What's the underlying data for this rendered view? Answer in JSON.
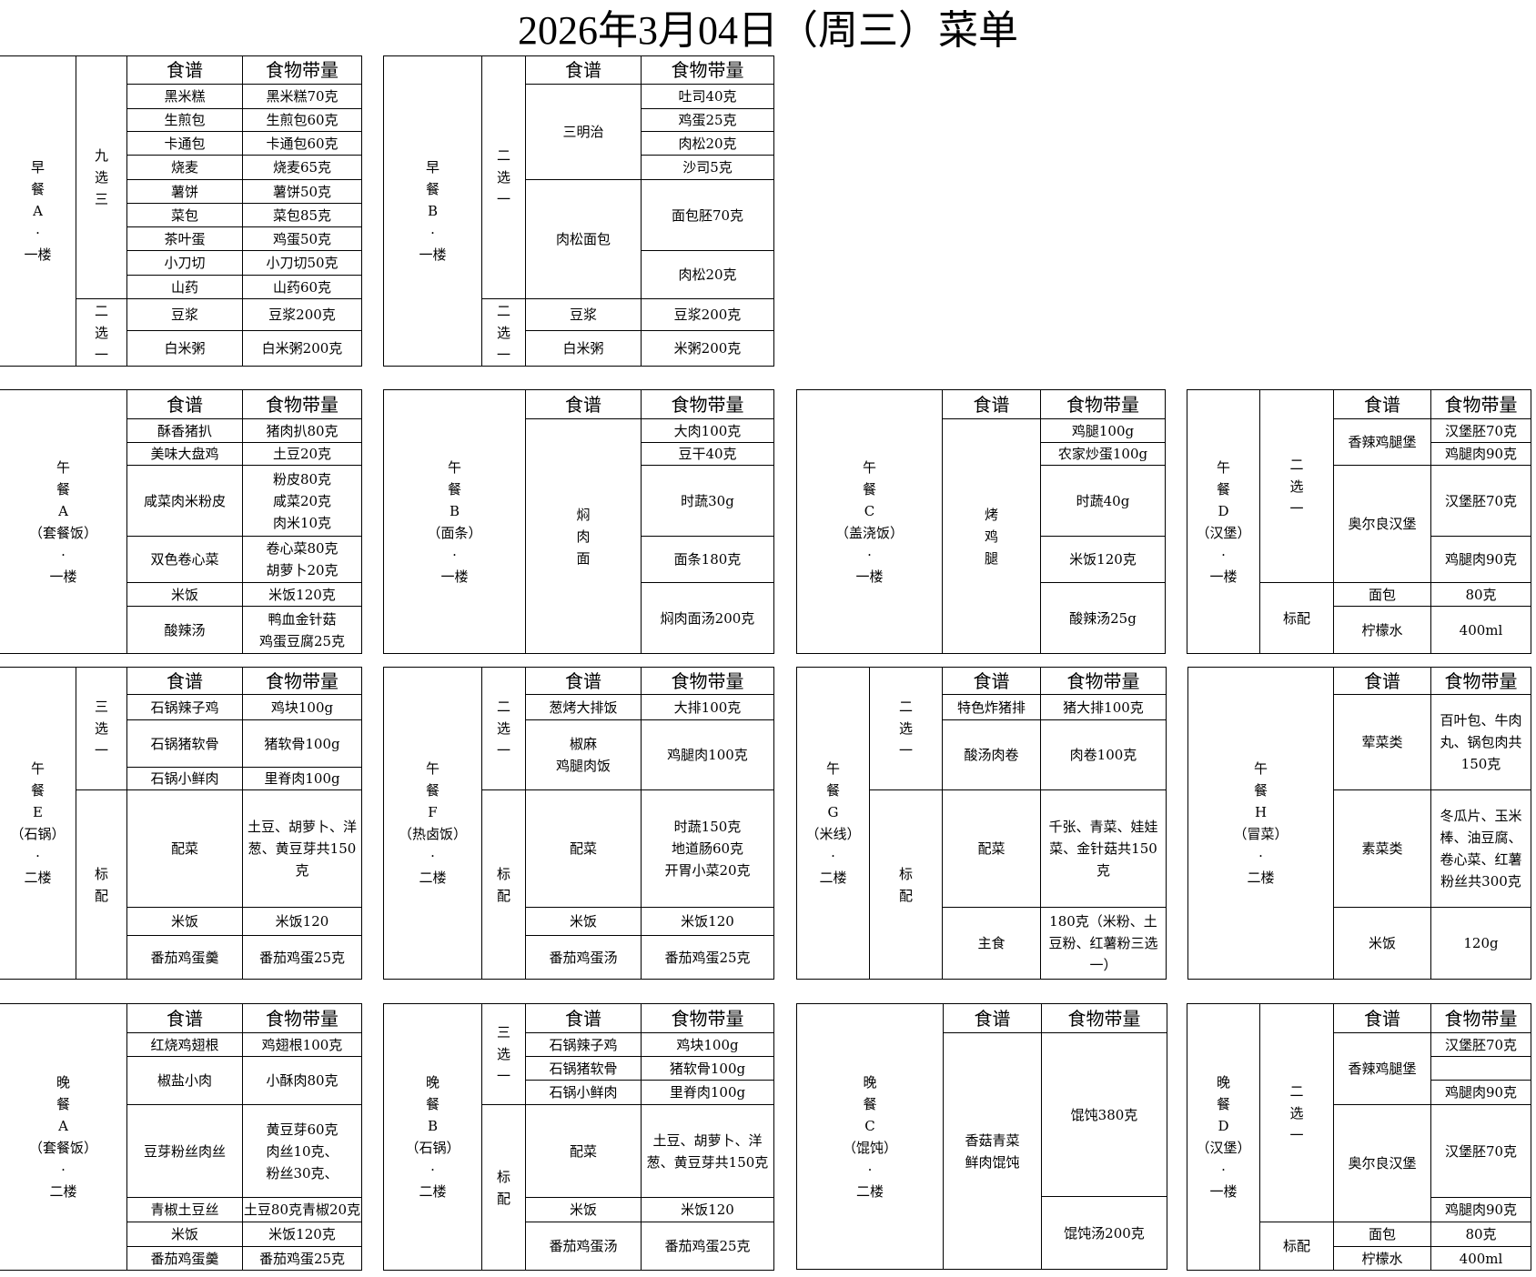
{
  "title": "2026年3月04日（周三）菜单",
  "header": {
    "recipe": "食谱",
    "amount": "食物带量"
  },
  "breakfast_a": {
    "label": "早\n餐\nA\n·\n一楼",
    "groups": [
      "九\n选\n三",
      "二\n选\n一"
    ],
    "items": [
      {
        "recipe": "黑米糕",
        "amount": "黑米糕70克"
      },
      {
        "recipe": "生煎包",
        "amount": "生煎包60克"
      },
      {
        "recipe": "卡通包",
        "amount": "卡通包60克"
      },
      {
        "recipe": "烧麦",
        "amount": "烧麦65克"
      },
      {
        "recipe": "薯饼",
        "amount": "薯饼50克"
      },
      {
        "recipe": "菜包",
        "amount": "菜包85克"
      },
      {
        "recipe": "茶叶蛋",
        "amount": "鸡蛋50克"
      },
      {
        "recipe": "小刀切",
        "amount": "小刀切50克"
      },
      {
        "recipe": "山药",
        "amount": "山药60克"
      },
      {
        "recipe": "豆浆",
        "amount": "豆浆200克"
      },
      {
        "recipe": "白米粥",
        "amount": "白米粥200克"
      }
    ]
  },
  "breakfast_b": {
    "label": "早\n餐\nB\n·\n一楼",
    "groups": [
      "二\n选\n一",
      "二\n选\n一"
    ],
    "items": [
      {
        "recipe": "三明治",
        "amount": [
          "吐司40克",
          "鸡蛋25克",
          "肉松20克",
          "沙司5克"
        ]
      },
      {
        "recipe": "肉松面包",
        "amount": [
          "面包胚70克",
          "肉松20克"
        ]
      },
      {
        "recipe": "豆浆",
        "amount": [
          "豆浆200克"
        ]
      },
      {
        "recipe": "白米粥",
        "amount": [
          "米粥200克"
        ]
      }
    ]
  },
  "lunch_a": {
    "label": "午\n餐\nA\n（套餐饭）\n·\n一楼",
    "items": [
      {
        "recipe": "酥香猪扒",
        "amount": "猪肉扒80克"
      },
      {
        "recipe": "美味大盘鸡",
        "amount": "土豆20克"
      },
      {
        "recipe": "咸菜肉米粉皮",
        "amount": "粉皮80克\n咸菜20克\n肉米10克"
      },
      {
        "recipe": "双色卷心菜",
        "amount": "卷心菜80克\n胡萝卜20克"
      },
      {
        "recipe": "米饭",
        "amount": "米饭120克"
      },
      {
        "recipe": "酸辣汤",
        "amount": "鸭血金针菇\n鸡蛋豆腐25克"
      }
    ]
  },
  "lunch_b": {
    "label": "午\n餐\nB\n（面条）\n·\n一楼",
    "recipe": "焖\n肉\n面",
    "amounts": [
      "大肉100克",
      "豆干40克",
      "时蔬30g",
      "面条180克",
      "焖肉面汤200克"
    ]
  },
  "lunch_c": {
    "label": "午\n餐\nC\n（盖浇饭）\n·\n一楼",
    "recipe": "烤\n鸡\n腿",
    "amounts": [
      "鸡腿100g",
      "农家炒蛋100g",
      "时蔬40g",
      "米饭120克",
      "酸辣汤25g"
    ]
  },
  "lunch_d": {
    "label": "午\n餐\nD\n（汉堡）\n·\n一楼",
    "groups": [
      "二\n选\n一",
      "标配"
    ],
    "items": [
      {
        "recipe": "香辣鸡腿堡",
        "amount": [
          "汉堡胚70克",
          "鸡腿肉90克"
        ]
      },
      {
        "recipe": "奥尔良汉堡",
        "amount": [
          "汉堡胚70克",
          "鸡腿肉90克"
        ]
      },
      {
        "recipe": "面包",
        "amount": [
          "80克"
        ]
      },
      {
        "recipe": "柠檬水",
        "amount": [
          "400ml"
        ]
      }
    ]
  },
  "lunch_e": {
    "label": "午\n餐\nE\n（石锅）\n·\n二楼",
    "groups": [
      "三\n选\n一",
      "标\n配"
    ],
    "items": [
      {
        "recipe": "石锅辣子鸡",
        "amount": "鸡块100g"
      },
      {
        "recipe": "石锅猪软骨",
        "amount": "猪软骨100g"
      },
      {
        "recipe": "石锅小鲜肉",
        "amount": "里脊肉100g"
      },
      {
        "recipe": "配菜",
        "amount": "土豆、胡萝卜、洋葱、黄豆芽共150克"
      },
      {
        "recipe": "米饭",
        "amount": "米饭120"
      },
      {
        "recipe": "番茄鸡蛋羹",
        "amount": "番茄鸡蛋25克"
      }
    ]
  },
  "lunch_f": {
    "label": "午\n餐\nF\n（热卤饭）\n·\n二楼",
    "groups": [
      "二\n选\n一",
      "标\n配"
    ],
    "items": [
      {
        "recipe": "葱烤大排饭",
        "amount": "大排100克"
      },
      {
        "recipe": "椒麻\n鸡腿肉饭",
        "amount": "鸡腿肉100克"
      },
      {
        "recipe": "配菜",
        "amount": "时蔬150克\n地道肠60克\n开胃小菜20克"
      },
      {
        "recipe": "米饭",
        "amount": "米饭120"
      },
      {
        "recipe": "番茄鸡蛋汤",
        "amount": "番茄鸡蛋25克"
      }
    ]
  },
  "lunch_g": {
    "label": "午\n餐\nG\n（米线）\n·\n二楼",
    "groups": [
      "二\n选\n一",
      "标\n配"
    ],
    "items": [
      {
        "recipe": "特色炸猪排",
        "amount": "猪大排100克"
      },
      {
        "recipe": "酸汤肉卷",
        "amount": "肉卷100克"
      },
      {
        "recipe": "配菜",
        "amount": "千张、青菜、娃娃菜、金针菇共150克"
      },
      {
        "recipe": "主食",
        "amount": "180克（米粉、土豆粉、红薯粉三选一）"
      }
    ]
  },
  "lunch_h": {
    "label": "午\n餐\nH\n（冒菜）\n·\n二楼",
    "items": [
      {
        "recipe": "荤菜类",
        "amount": "百叶包、牛肉丸、锅包肉共150克"
      },
      {
        "recipe": "素菜类",
        "amount": "冬瓜片、玉米棒、油豆腐、卷心菜、红薯粉丝共300克"
      },
      {
        "recipe": "米饭",
        "amount": "120g"
      }
    ]
  },
  "dinner_a": {
    "label": "晚\n餐\nA\n（套餐饭）\n·\n二楼",
    "items": [
      {
        "recipe": "红烧鸡翅根",
        "amount": "鸡翅根100克"
      },
      {
        "recipe": "椒盐小肉",
        "amount": "小酥肉80克"
      },
      {
        "recipe": "豆芽粉丝肉丝",
        "amount": "黄豆芽60克\n肉丝10克、\n粉丝30克、"
      },
      {
        "recipe": "青椒土豆丝",
        "amount": "土豆80克青椒20克"
      },
      {
        "recipe": "米饭",
        "amount": "米饭120克"
      },
      {
        "recipe": "番茄鸡蛋羹",
        "amount": "番茄鸡蛋25克"
      }
    ]
  },
  "dinner_b": {
    "label": "晚\n餐\nB\n（石锅）\n·\n二楼",
    "groups": [
      "三\n选\n一",
      "标\n配"
    ],
    "items": [
      {
        "recipe": "石锅辣子鸡",
        "amount": "鸡块100g"
      },
      {
        "recipe": "石锅猪软骨",
        "amount": "猪软骨100g"
      },
      {
        "recipe": "石锅小鲜肉",
        "amount": "里脊肉100g"
      },
      {
        "recipe": "配菜",
        "amount": "土豆、胡萝卜、洋葱、黄豆芽共150克"
      },
      {
        "recipe": "米饭",
        "amount": "米饭120"
      },
      {
        "recipe": "番茄鸡蛋汤",
        "amount": "番茄鸡蛋25克"
      }
    ]
  },
  "dinner_c": {
    "label": "晚\n餐\nC\n（馄饨）\n·\n二楼",
    "recipe": "香菇青菜\n鲜肉馄饨",
    "amounts": [
      "馄饨380克",
      "馄饨汤200克"
    ]
  },
  "dinner_d": {
    "label": "晚\n餐\nD\n（汉堡）\n·\n一楼",
    "groups": [
      "二\n选\n一",
      "标配"
    ],
    "items": [
      {
        "recipe": "香辣鸡腿堡",
        "amount": [
          "汉堡胚70克",
          "鸡腿肉90克"
        ]
      },
      {
        "recipe": "奥尔良汉堡",
        "amount": [
          "汉堡胚70克",
          "鸡腿肉90克"
        ]
      },
      {
        "recipe": "面包",
        "amount": [
          "80克"
        ]
      },
      {
        "recipe": "柠檬水",
        "amount": [
          "400ml"
        ]
      }
    ]
  }
}
